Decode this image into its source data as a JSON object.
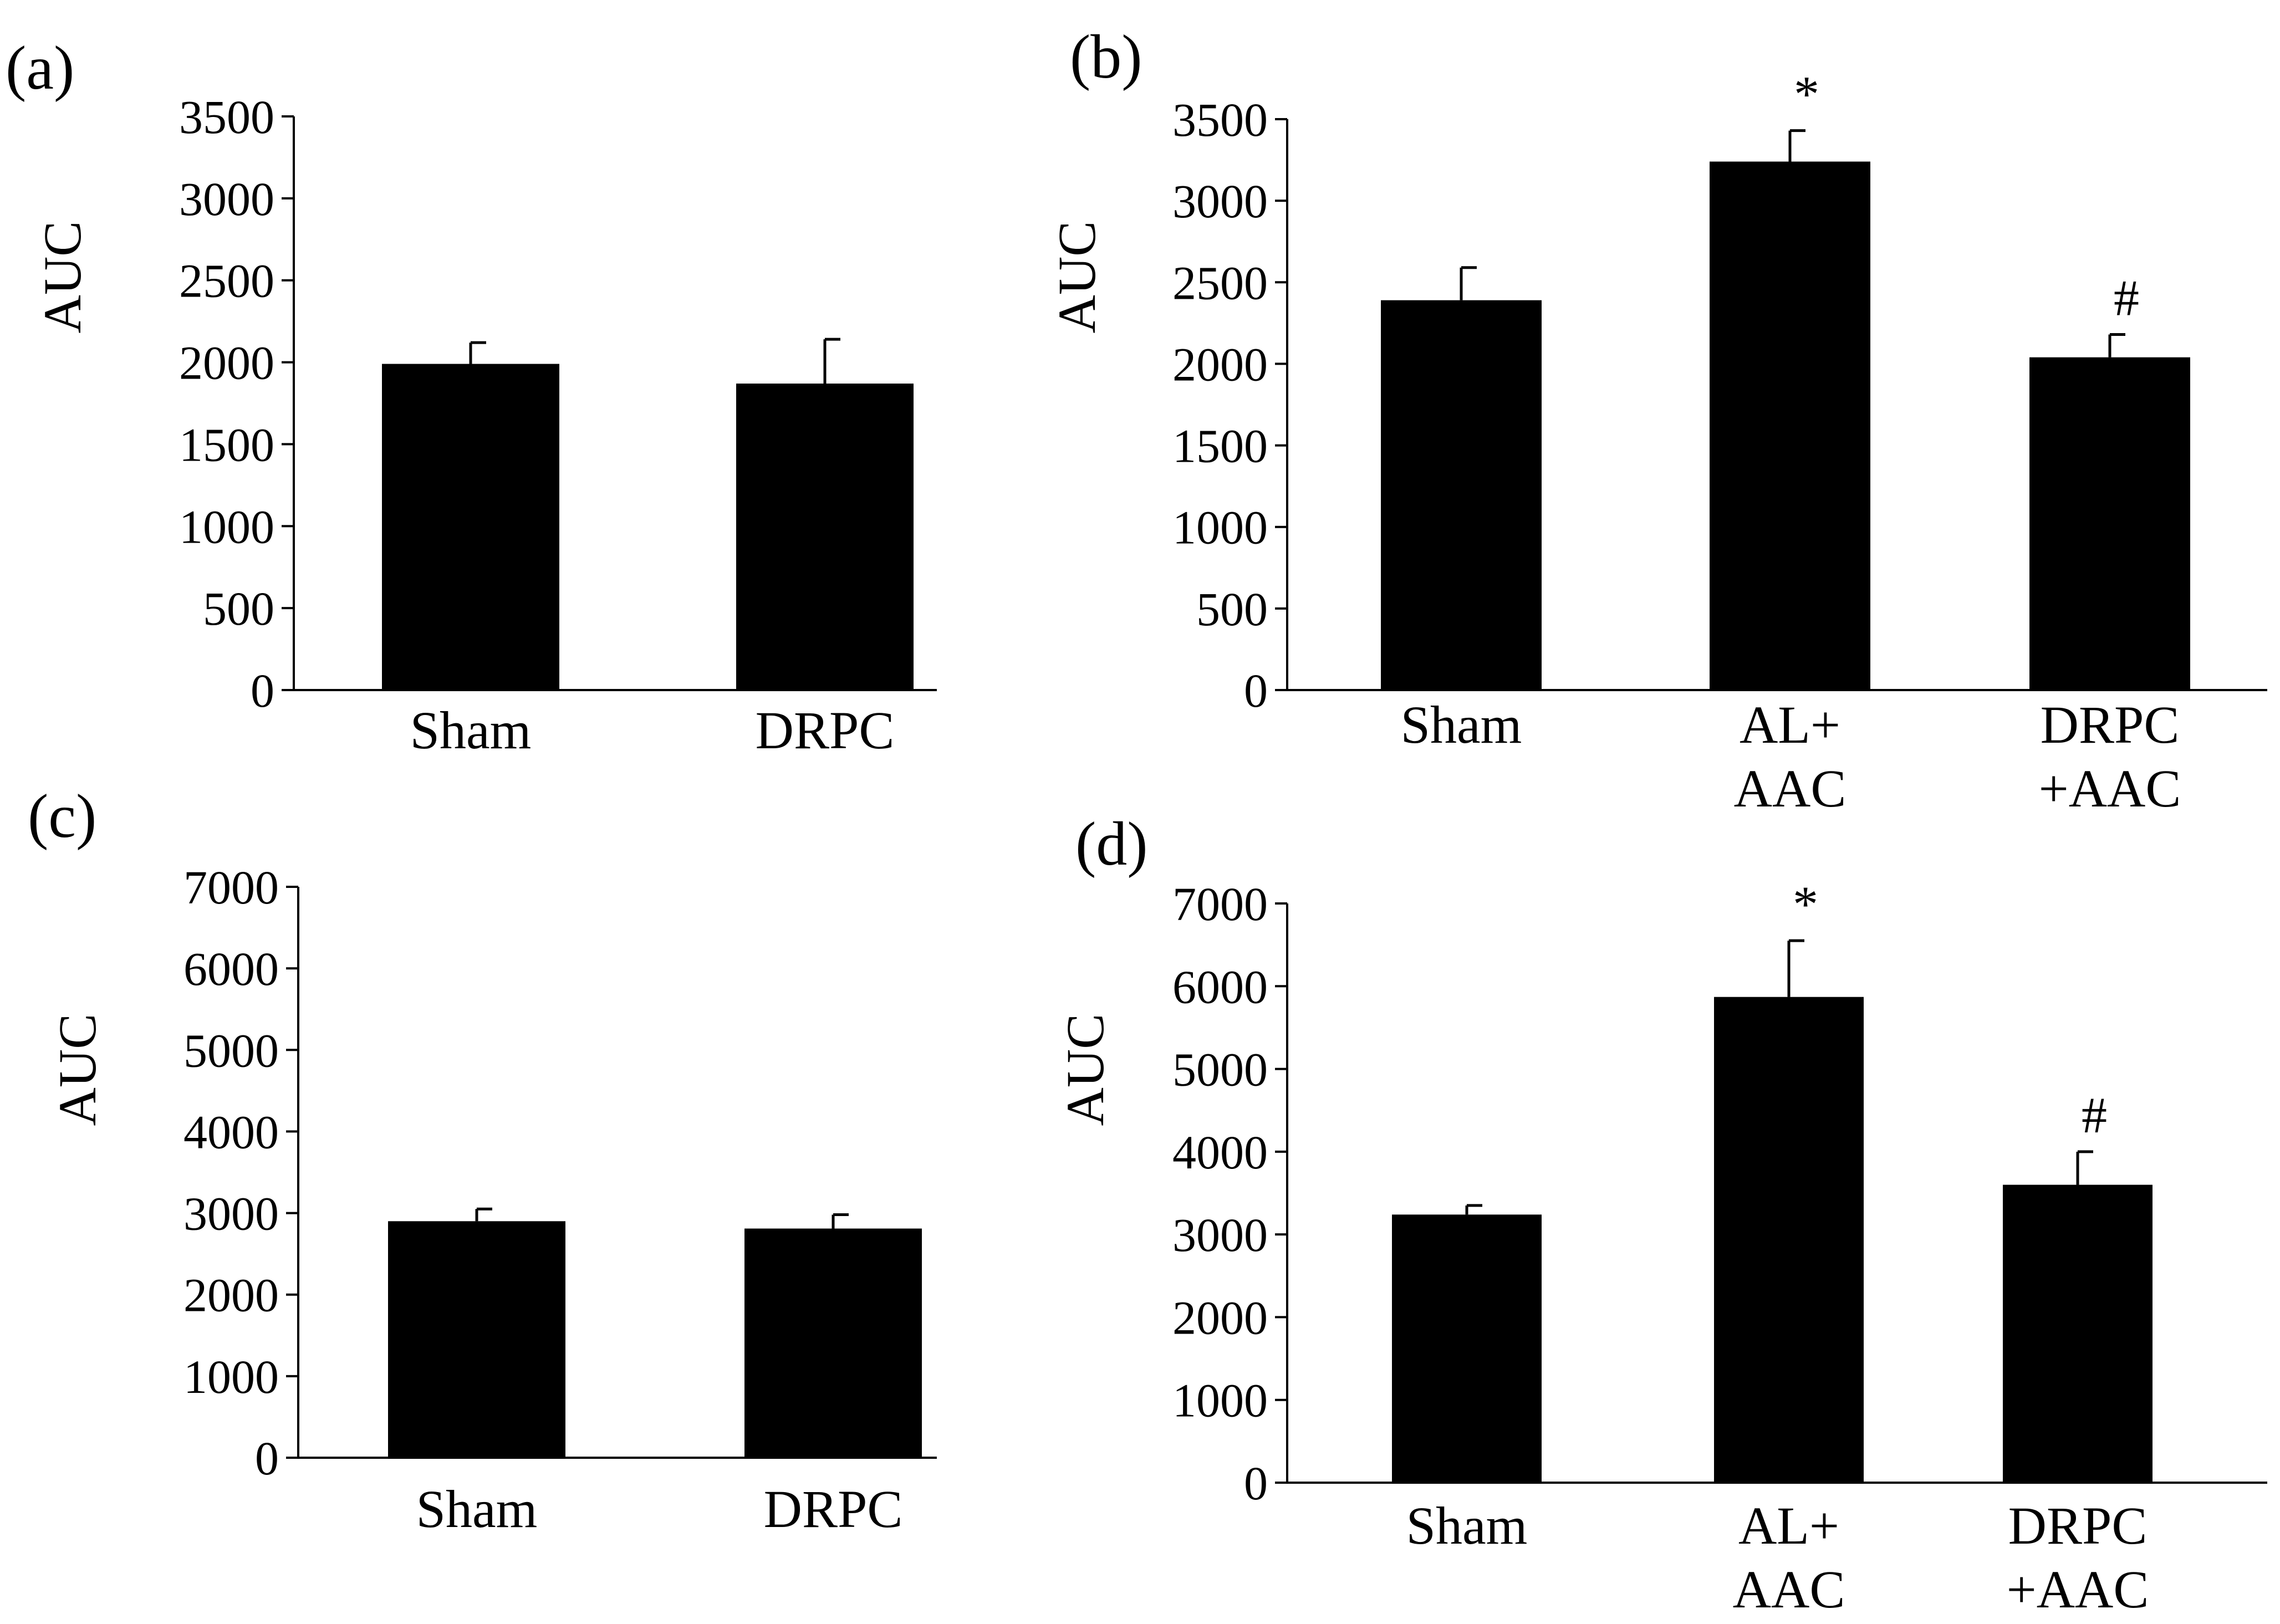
{
  "chart_data": [
    {
      "id": "a",
      "type": "bar",
      "panel_label": "(a)",
      "ylabel": "AUC",
      "xlabel": "",
      "ylim": [
        0,
        3500
      ],
      "yticks": [
        0,
        500,
        1000,
        1500,
        2000,
        2500,
        3000,
        3500
      ],
      "categories": [
        [
          "Sham"
        ],
        [
          "DRPC"
        ]
      ],
      "values": [
        1990,
        1870
      ],
      "errors": [
        130,
        270
      ],
      "annotations": [
        "",
        ""
      ]
    },
    {
      "id": "b",
      "type": "bar",
      "panel_label": "(b)",
      "ylabel": "AUC",
      "xlabel": "",
      "ylim": [
        0,
        3500
      ],
      "yticks": [
        0,
        500,
        1000,
        1500,
        2000,
        2500,
        3000,
        3500
      ],
      "categories": [
        [
          "Sham"
        ],
        [
          "AL+",
          "AAC"
        ],
        [
          "DRPC",
          "+AAC"
        ]
      ],
      "values": [
        2390,
        3240,
        2040
      ],
      "errors": [
        200,
        190,
        140
      ],
      "annotations": [
        "",
        "*",
        "#"
      ]
    },
    {
      "id": "c",
      "type": "bar",
      "panel_label": "(c)",
      "ylabel": "AUC",
      "xlabel": "",
      "ylim": [
        0,
        7000
      ],
      "yticks": [
        0,
        1000,
        2000,
        3000,
        4000,
        5000,
        6000,
        7000
      ],
      "categories": [
        [
          "Sham"
        ],
        [
          "DRPC"
        ]
      ],
      "values": [
        2900,
        2810
      ],
      "errors": [
        150,
        170
      ],
      "annotations": [
        "",
        ""
      ]
    },
    {
      "id": "d",
      "type": "bar",
      "panel_label": "(d)",
      "ylabel": "AUC",
      "xlabel": "",
      "ylim": [
        0,
        7000
      ],
      "yticks": [
        0,
        1000,
        2000,
        3000,
        4000,
        5000,
        6000,
        7000
      ],
      "categories": [
        [
          "Sham"
        ],
        [
          "AL+",
          "AAC"
        ],
        [
          "DRPC",
          "+AAC"
        ]
      ],
      "values": [
        3240,
        5870,
        3600
      ],
      "errors": [
        110,
        680,
        400
      ],
      "annotations": [
        "",
        "*",
        "#"
      ]
    }
  ]
}
